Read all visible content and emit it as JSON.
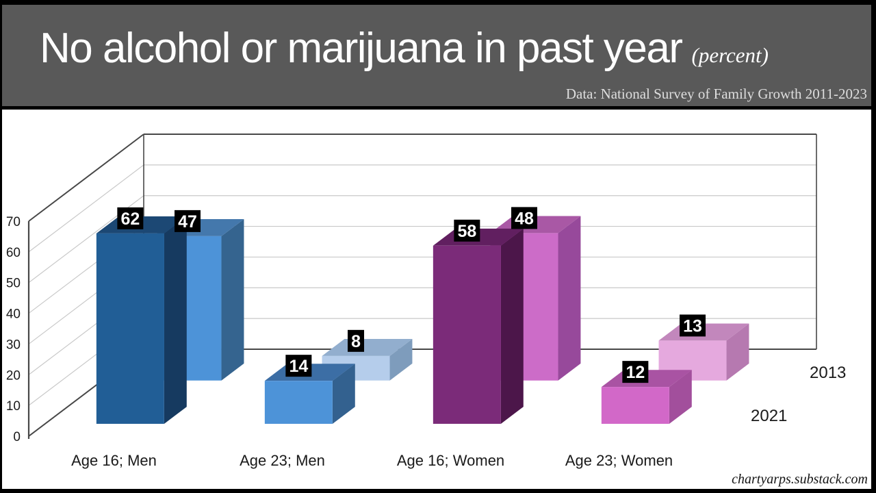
{
  "chart_data": {
    "type": "bar",
    "style": "3d-depth-clustered",
    "title": "No alcohol or marijuana in past year",
    "title_suffix": "(percent)",
    "source_note": "Data: National Survey of Family Growth 2011-2023",
    "categories": [
      "Age 16; Men",
      "Age 23; Men",
      "Age 16; Women",
      "Age 23; Women"
    ],
    "series": [
      {
        "name": "2013",
        "row": "back",
        "values": [
          47,
          8,
          48,
          13
        ],
        "face_colors": [
          [
            "#4D93D8",
            "#4478AC",
            "#35648F"
          ],
          [
            "#B5CDEB",
            "#92AECE",
            "#7E9CBC"
          ],
          [
            "#CC6CC8",
            "#A958A5",
            "#97499B"
          ],
          [
            "#E5A9DE",
            "#C287BC",
            "#B679B0"
          ]
        ]
      },
      {
        "name": "2021",
        "row": "front",
        "values": [
          62,
          14,
          58,
          12
        ],
        "face_colors": [
          [
            "#215E96",
            "#1C4874",
            "#163A60"
          ],
          [
            "#4D93D8",
            "#3C6EA5",
            "#33618F"
          ],
          [
            "#7B2B79",
            "#611F60",
            "#4C164A"
          ],
          [
            "#D268C8",
            "#A953A3",
            "#A24F9C"
          ]
        ]
      }
    ],
    "value_labels_shown": true,
    "ylim": [
      0,
      70
    ],
    "yticks": [
      0,
      10,
      20,
      30,
      40,
      50,
      60,
      70
    ],
    "grid": true,
    "series_labels_position": "right-of-plot"
  },
  "colors": {
    "header_bg": "#595959",
    "header_text": "#FFFFFF",
    "source_text": "#DEDEDE",
    "panel_bg": "#FFFFFF",
    "frame_border": "#000000",
    "grid_light": "#C9C9C9",
    "grid_dark": "#474747",
    "axis_text": "#1A1A1A",
    "value_label_bg": "#000000",
    "value_label_text": "#FFFFFF"
  },
  "footer": {
    "attribution": "chartyarps.substack.com"
  }
}
